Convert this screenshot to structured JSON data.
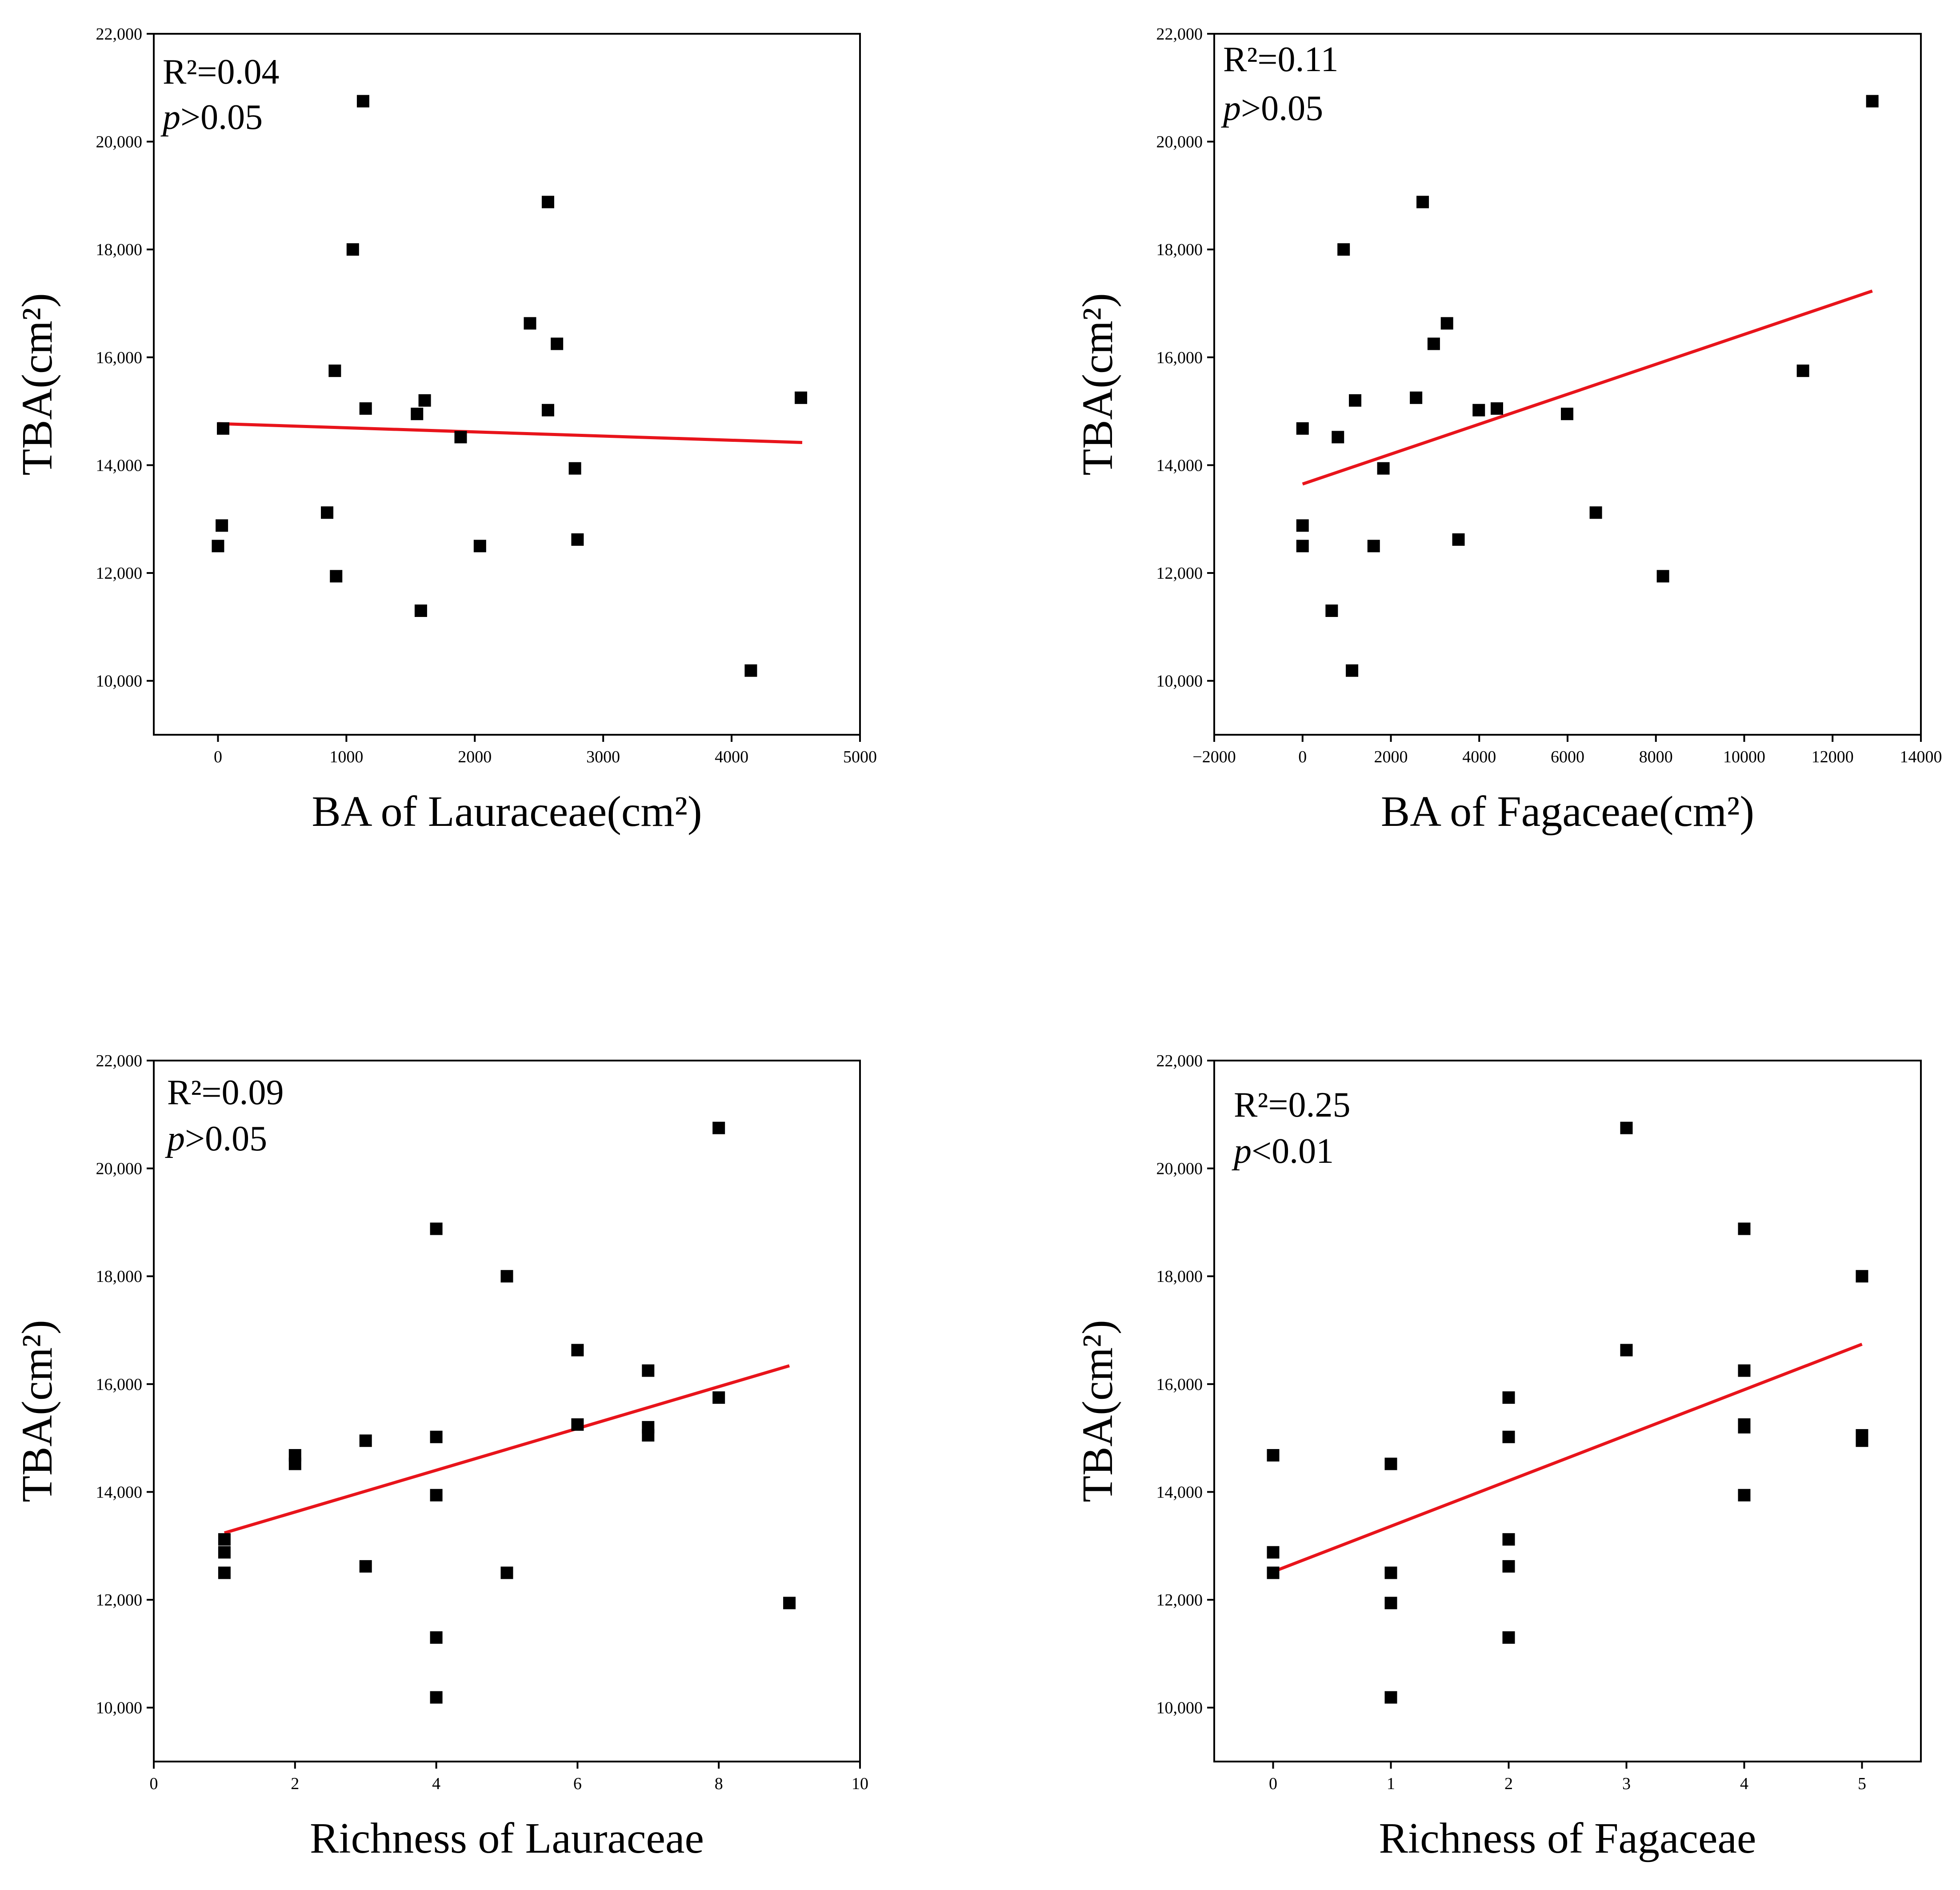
{
  "chart_data": [
    {
      "type": "scatter",
      "id": "lauraceae-ba",
      "xlabel": "BA of Lauraceae(cm²)",
      "ylabel": "TBA(cm²)",
      "xlim": [
        -500,
        5000
      ],
      "ylim": [
        9000,
        22000
      ],
      "xticks": [
        0,
        1000,
        2000,
        3000,
        4000,
        5000
      ],
      "xtick_labels": [
        "0",
        "1000",
        "2000",
        "3000",
        "4000",
        "5000"
      ],
      "yticks": [
        10000,
        12000,
        14000,
        16000,
        18000,
        20000,
        22000
      ],
      "ytick_labels": [
        "10,000",
        "12,000",
        "14,000",
        "16,000",
        "18,000",
        "20,000",
        "22,000"
      ],
      "annotation": {
        "r2": "R²=0.04",
        "p_symbol": "p",
        "p_rest": ">0.05"
      },
      "fit_line": {
        "x": [
          0,
          4550
        ],
        "y": [
          14770,
          14420
        ]
      },
      "points": [
        {
          "x": 1130,
          "y": 20750
        },
        {
          "x": 2570,
          "y": 18880
        },
        {
          "x": 1050,
          "y": 18000
        },
        {
          "x": 2430,
          "y": 16630
        },
        {
          "x": 2640,
          "y": 16250
        },
        {
          "x": 910,
          "y": 15750
        },
        {
          "x": 4540,
          "y": 15250
        },
        {
          "x": 1610,
          "y": 15200
        },
        {
          "x": 1150,
          "y": 15050
        },
        {
          "x": 2570,
          "y": 15020
        },
        {
          "x": 1550,
          "y": 14950
        },
        {
          "x": 40,
          "y": 14680
        },
        {
          "x": 1890,
          "y": 14520
        },
        {
          "x": 2780,
          "y": 13940
        },
        {
          "x": 850,
          "y": 13120
        },
        {
          "x": 30,
          "y": 12880
        },
        {
          "x": 2800,
          "y": 12620
        },
        {
          "x": 0,
          "y": 12500
        },
        {
          "x": 2040,
          "y": 12500
        },
        {
          "x": 920,
          "y": 11940
        },
        {
          "x": 1580,
          "y": 11300
        },
        {
          "x": 4150,
          "y": 10190
        }
      ]
    },
    {
      "type": "scatter",
      "id": "fagaceae-ba",
      "xlabel": "BA of Fagaceae(cm²)",
      "ylabel": "TBA(cm²)",
      "xlim": [
        -2000,
        14000
      ],
      "ylim": [
        9000,
        22000
      ],
      "xticks": [
        -2000,
        0,
        2000,
        4000,
        6000,
        8000,
        10000,
        12000,
        14000
      ],
      "xtick_labels": [
        "−2000",
        "0",
        "2000",
        "4000",
        "6000",
        "8000",
        "10000",
        "12000",
        "14000"
      ],
      "yticks": [
        10000,
        12000,
        14000,
        16000,
        18000,
        20000,
        22000
      ],
      "ytick_labels": [
        "10,000",
        "12,000",
        "14,000",
        "16,000",
        "18,000",
        "20,000",
        "22,000"
      ],
      "annotation": {
        "r2": "R²=0.11",
        "p_symbol": "p",
        "p_rest": ">0.05"
      },
      "fit_line": {
        "x": [
          0,
          12900
        ],
        "y": [
          13650,
          17230
        ]
      },
      "points": [
        {
          "x": 12900,
          "y": 20750
        },
        {
          "x": 2720,
          "y": 18880
        },
        {
          "x": 930,
          "y": 18000
        },
        {
          "x": 3270,
          "y": 16630
        },
        {
          "x": 2970,
          "y": 16250
        },
        {
          "x": 11330,
          "y": 15750
        },
        {
          "x": 2570,
          "y": 15250
        },
        {
          "x": 1190,
          "y": 15200
        },
        {
          "x": 4400,
          "y": 15050
        },
        {
          "x": 3990,
          "y": 15020
        },
        {
          "x": 5990,
          "y": 14950
        },
        {
          "x": 0,
          "y": 14680
        },
        {
          "x": 800,
          "y": 14520
        },
        {
          "x": 1830,
          "y": 13940
        },
        {
          "x": 6640,
          "y": 13120
        },
        {
          "x": 0,
          "y": 12880
        },
        {
          "x": 3530,
          "y": 12620
        },
        {
          "x": 0,
          "y": 12500
        },
        {
          "x": 1610,
          "y": 12500
        },
        {
          "x": 8160,
          "y": 11940
        },
        {
          "x": 660,
          "y": 11300
        },
        {
          "x": 1120,
          "y": 10190
        }
      ]
    },
    {
      "type": "scatter",
      "id": "lauraceae-richness",
      "xlabel": "Richness of Lauraceae",
      "ylabel": "TBA(cm²)",
      "xlim": [
        0,
        10
      ],
      "ylim": [
        9000,
        22000
      ],
      "xticks": [
        0,
        2,
        4,
        6,
        8,
        10
      ],
      "xtick_labels": [
        "0",
        "2",
        "4",
        "6",
        "8",
        "10"
      ],
      "yticks": [
        10000,
        12000,
        14000,
        16000,
        18000,
        20000,
        22000
      ],
      "ytick_labels": [
        "10,000",
        "12,000",
        "14,000",
        "16,000",
        "18,000",
        "20,000",
        "22,000"
      ],
      "annotation": {
        "r2": "R²=0.09",
        "p_symbol": "p",
        "p_rest": ">0.05"
      },
      "fit_line": {
        "x": [
          1,
          9
        ],
        "y": [
          13240,
          16340
        ]
      },
      "points": [
        {
          "x": 8,
          "y": 20750
        },
        {
          "x": 4,
          "y": 18880
        },
        {
          "x": 5,
          "y": 18000
        },
        {
          "x": 6,
          "y": 16630
        },
        {
          "x": 7,
          "y": 16250
        },
        {
          "x": 8,
          "y": 15750
        },
        {
          "x": 6,
          "y": 15250
        },
        {
          "x": 7,
          "y": 15200
        },
        {
          "x": 7,
          "y": 15050
        },
        {
          "x": 4,
          "y": 15020
        },
        {
          "x": 3,
          "y": 14950
        },
        {
          "x": 2,
          "y": 14680
        },
        {
          "x": 2,
          "y": 14520
        },
        {
          "x": 4,
          "y": 13940
        },
        {
          "x": 1,
          "y": 13120
        },
        {
          "x": 1,
          "y": 12880
        },
        {
          "x": 3,
          "y": 12620
        },
        {
          "x": 1,
          "y": 12500
        },
        {
          "x": 5,
          "y": 12500
        },
        {
          "x": 9,
          "y": 11940
        },
        {
          "x": 4,
          "y": 11300
        },
        {
          "x": 4,
          "y": 10190
        }
      ]
    },
    {
      "type": "scatter",
      "id": "fagaceae-richness",
      "xlabel": "Richness of Fagaceae",
      "ylabel": "TBA(cm²)",
      "xlim": [
        -0.5,
        5.5
      ],
      "ylim": [
        9000,
        22000
      ],
      "xticks": [
        0,
        1,
        2,
        3,
        4,
        5
      ],
      "xtick_labels": [
        "0",
        "1",
        "2",
        "3",
        "4",
        "5"
      ],
      "yticks": [
        10000,
        12000,
        14000,
        16000,
        18000,
        20000,
        22000
      ],
      "ytick_labels": [
        "10,000",
        "12,000",
        "14,000",
        "16,000",
        "18,000",
        "20,000",
        "22,000"
      ],
      "annotation": {
        "r2": "R²=0.25",
        "p_symbol": "p",
        "p_rest": "<0.01"
      },
      "fit_line": {
        "x": [
          0,
          5
        ],
        "y": [
          12520,
          16740
        ]
      },
      "points": [
        {
          "x": 3,
          "y": 20750
        },
        {
          "x": 4,
          "y": 18880
        },
        {
          "x": 5,
          "y": 18000
        },
        {
          "x": 3,
          "y": 16630
        },
        {
          "x": 4,
          "y": 16250
        },
        {
          "x": 2,
          "y": 15750
        },
        {
          "x": 4,
          "y": 15250
        },
        {
          "x": 4,
          "y": 15200
        },
        {
          "x": 5,
          "y": 15050
        },
        {
          "x": 2,
          "y": 15020
        },
        {
          "x": 5,
          "y": 14950
        },
        {
          "x": 0,
          "y": 14680
        },
        {
          "x": 1,
          "y": 14520
        },
        {
          "x": 4,
          "y": 13940
        },
        {
          "x": 2,
          "y": 13120
        },
        {
          "x": 0,
          "y": 12880
        },
        {
          "x": 2,
          "y": 12620
        },
        {
          "x": 0,
          "y": 12500
        },
        {
          "x": 1,
          "y": 12500
        },
        {
          "x": 1,
          "y": 11940
        },
        {
          "x": 2,
          "y": 11300
        },
        {
          "x": 1,
          "y": 10190
        }
      ]
    }
  ],
  "style": {
    "point_color": "#000000",
    "fit_line_color": "#e8141b",
    "axis_color": "#000000",
    "background": "#ffffff"
  }
}
